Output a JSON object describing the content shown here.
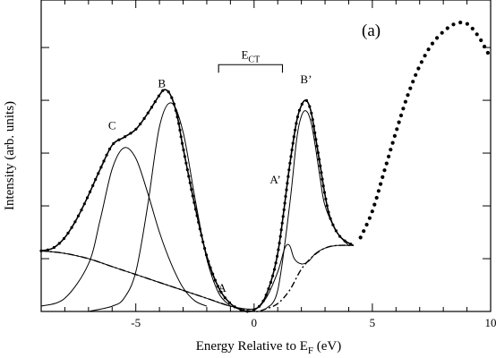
{
  "chart_data": {
    "type": "line",
    "panel_label": "(a)",
    "xlabel": "Energy Relative to E",
    "xlabel_sub": "F",
    "xlabel_unit": " (eV)",
    "ylabel": "Intensity (arb. units)",
    "xlim": [
      -9,
      10
    ],
    "ylim": [
      0,
      1.18
    ],
    "x_ticks": [
      -5,
      0,
      5,
      10
    ],
    "x_tick_labels": [
      "-5",
      "0",
      "5",
      "10"
    ],
    "y_ticks": [
      0.0,
      0.2,
      0.4,
      0.6,
      0.8,
      1.0
    ],
    "annotations": [
      {
        "text": "A",
        "x": -1.35,
        "y": 0.075
      },
      {
        "text": "B",
        "x": -3.9,
        "y": 0.85
      },
      {
        "text": "C",
        "x": -6.0,
        "y": 0.69
      },
      {
        "text": "A’",
        "x": 0.9,
        "y": 0.485
      },
      {
        "text": "B’",
        "x": 2.2,
        "y": 0.865
      }
    ],
    "bracket": {
      "label": "E",
      "label_sub": "CT",
      "x_start": -1.5,
      "x_end": 1.2,
      "y": 0.935
    },
    "series": [
      {
        "style": "dotted-fit",
        "x": [
          -9,
          -8.5,
          -8,
          -7.5,
          -7,
          -6.5,
          -6,
          -5.5,
          -5,
          -4.5,
          -4,
          -3.8,
          -3.6,
          -3.4,
          -3.2,
          -3,
          -2.5,
          -2,
          -1.5,
          -1,
          -0.5,
          0,
          0.5,
          1,
          1.5,
          1.8,
          2,
          2.2,
          2.4,
          2.6,
          2.8,
          3,
          3.2,
          3.5,
          3.8,
          4.2
        ],
        "y": [
          0.23,
          0.24,
          0.28,
          0.35,
          0.44,
          0.54,
          0.63,
          0.66,
          0.69,
          0.75,
          0.82,
          0.84,
          0.83,
          0.79,
          0.72,
          0.62,
          0.4,
          0.21,
          0.09,
          0.03,
          0.005,
          0.005,
          0.06,
          0.22,
          0.55,
          0.72,
          0.78,
          0.8,
          0.76,
          0.66,
          0.55,
          0.44,
          0.36,
          0.3,
          0.27,
          0.25
        ]
      },
      {
        "style": "solid",
        "x": [
          -9,
          -8.5,
          -8,
          -7.5,
          -7,
          -6.5,
          -6,
          -5.5,
          -5,
          -4.5,
          -4,
          -3.8,
          -3.6,
          -3.4,
          -3.2,
          -3,
          -2.5,
          -2,
          -1.5,
          -1,
          -0.5,
          0,
          0.5,
          1,
          1.5,
          1.8,
          2,
          2.2,
          2.4,
          2.6,
          2.8,
          3,
          3.2,
          3.5,
          3.8,
          4.2
        ],
        "y": [
          0.23,
          0.24,
          0.28,
          0.35,
          0.44,
          0.54,
          0.63,
          0.66,
          0.69,
          0.75,
          0.82,
          0.84,
          0.83,
          0.79,
          0.72,
          0.62,
          0.4,
          0.21,
          0.09,
          0.03,
          0.005,
          0.005,
          0.06,
          0.22,
          0.55,
          0.72,
          0.78,
          0.8,
          0.76,
          0.66,
          0.55,
          0.44,
          0.36,
          0.3,
          0.27,
          0.25
        ]
      },
      {
        "style": "dotted-high",
        "x": [
          4.5,
          5,
          5.5,
          6,
          6.5,
          7,
          7.5,
          8,
          8.5,
          9,
          9.5,
          10
        ],
        "y": [
          0.28,
          0.38,
          0.53,
          0.68,
          0.82,
          0.93,
          1.01,
          1.06,
          1.09,
          1.09,
          1.04,
          0.96
        ]
      },
      {
        "style": "solid",
        "x": [
          -9,
          -8,
          -7,
          -6.5,
          -6,
          -5.5,
          -5,
          -4.5,
          -4,
          -3.5,
          -3,
          -2.5,
          -2
        ],
        "y": [
          0.02,
          0.05,
          0.18,
          0.35,
          0.54,
          0.62,
          0.58,
          0.45,
          0.3,
          0.18,
          0.09,
          0.04,
          0.02
        ]
      },
      {
        "style": "solid",
        "x": [
          -7,
          -6,
          -5.5,
          -5,
          -4.5,
          -4,
          -3.5,
          -3,
          -2.5,
          -2,
          -1.5,
          -1
        ],
        "y": [
          0.0,
          0.02,
          0.05,
          0.15,
          0.4,
          0.7,
          0.79,
          0.68,
          0.43,
          0.2,
          0.07,
          0.02
        ]
      },
      {
        "style": "solid",
        "x": [
          -9,
          -8,
          -7,
          -6,
          -5,
          -4,
          -3,
          -2,
          -1,
          0,
          0.5,
          1,
          1.3,
          1.5,
          1.7,
          2,
          2.3,
          2.6,
          3,
          3.5,
          4.2
        ],
        "y": [
          0.23,
          0.22,
          0.2,
          0.17,
          0.14,
          0.11,
          0.08,
          0.05,
          0.02,
          0.01,
          0.05,
          0.15,
          0.24,
          0.25,
          0.2,
          0.18,
          0.19,
          0.22,
          0.24,
          0.25,
          0.25
        ]
      },
      {
        "style": "solid",
        "x": [
          0.5,
          1,
          1.5,
          1.8,
          2,
          2.2,
          2.4,
          2.6,
          2.8,
          3,
          3.5,
          4
        ],
        "y": [
          0.01,
          0.08,
          0.4,
          0.65,
          0.74,
          0.76,
          0.72,
          0.62,
          0.5,
          0.4,
          0.3,
          0.25
        ]
      },
      {
        "style": "dash-dot",
        "x": [
          -9,
          -8,
          -7,
          -6,
          -5,
          -4,
          -3,
          -2,
          -1,
          0,
          0.5,
          1,
          1.5,
          2,
          2.5,
          3,
          3.5,
          4.2
        ],
        "y": [
          0.23,
          0.22,
          0.2,
          0.17,
          0.14,
          0.11,
          0.08,
          0.05,
          0.02,
          0.0,
          0.01,
          0.03,
          0.08,
          0.16,
          0.21,
          0.24,
          0.25,
          0.25
        ]
      }
    ]
  }
}
